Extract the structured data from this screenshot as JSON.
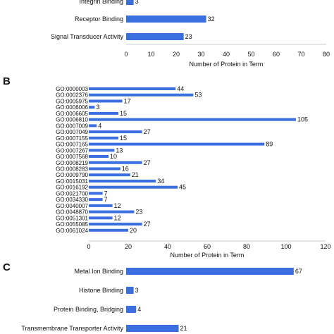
{
  "chart_data": [
    {
      "panel": "",
      "type": "bar",
      "orientation": "horizontal",
      "categories": [
        "Integrin Binding",
        "Receptor Binding",
        "Signal Transducer Activity"
      ],
      "values": [
        3,
        32,
        23
      ],
      "xlabel": "Number of Protein in Term",
      "xlim": [
        0,
        80
      ],
      "xticks": [
        0,
        10,
        20,
        30,
        40,
        50,
        60,
        70,
        80
      ],
      "color": "#3b6fe0"
    },
    {
      "panel": "B",
      "type": "bar",
      "orientation": "horizontal",
      "categories": [
        "GO:0000003",
        "GO:0002376",
        "GO:0005975",
        "GO:0006006",
        "GO:0006605",
        "GO:0006810",
        "GO:0007009",
        "GO:0007049",
        "GO:0007155",
        "GO:0007165",
        "GO:0007267",
        "GO:0007568",
        "GO:0008219",
        "GO:0008283",
        "GO:0009790",
        "GO:0015031",
        "GO:0016192",
        "GO:0021700",
        "GO:0034330",
        "GO:0040007",
        "GO:0048870",
        "GO:0051301",
        "GO:0055085",
        "GO:0061024"
      ],
      "values": [
        44,
        53,
        17,
        3,
        15,
        105,
        4,
        27,
        15,
        89,
        13,
        10,
        27,
        16,
        21,
        34,
        45,
        7,
        7,
        12,
        23,
        12,
        27,
        20
      ],
      "xlabel": "Number of Protein in Term",
      "xlim": [
        0,
        120
      ],
      "xticks": [
        0,
        20,
        40,
        60,
        80,
        100,
        120
      ],
      "color": "#3b6fe0"
    },
    {
      "panel": "C",
      "type": "bar",
      "orientation": "horizontal",
      "categories": [
        "Metal Ion Binding",
        "Histone Binding",
        "Protein Binding, Bridging",
        "Transmembrane Transporter Activity"
      ],
      "values": [
        67,
        3,
        4,
        21
      ],
      "xlabel": "",
      "xlim": [
        0,
        80
      ],
      "color": "#3b6fe0"
    }
  ]
}
